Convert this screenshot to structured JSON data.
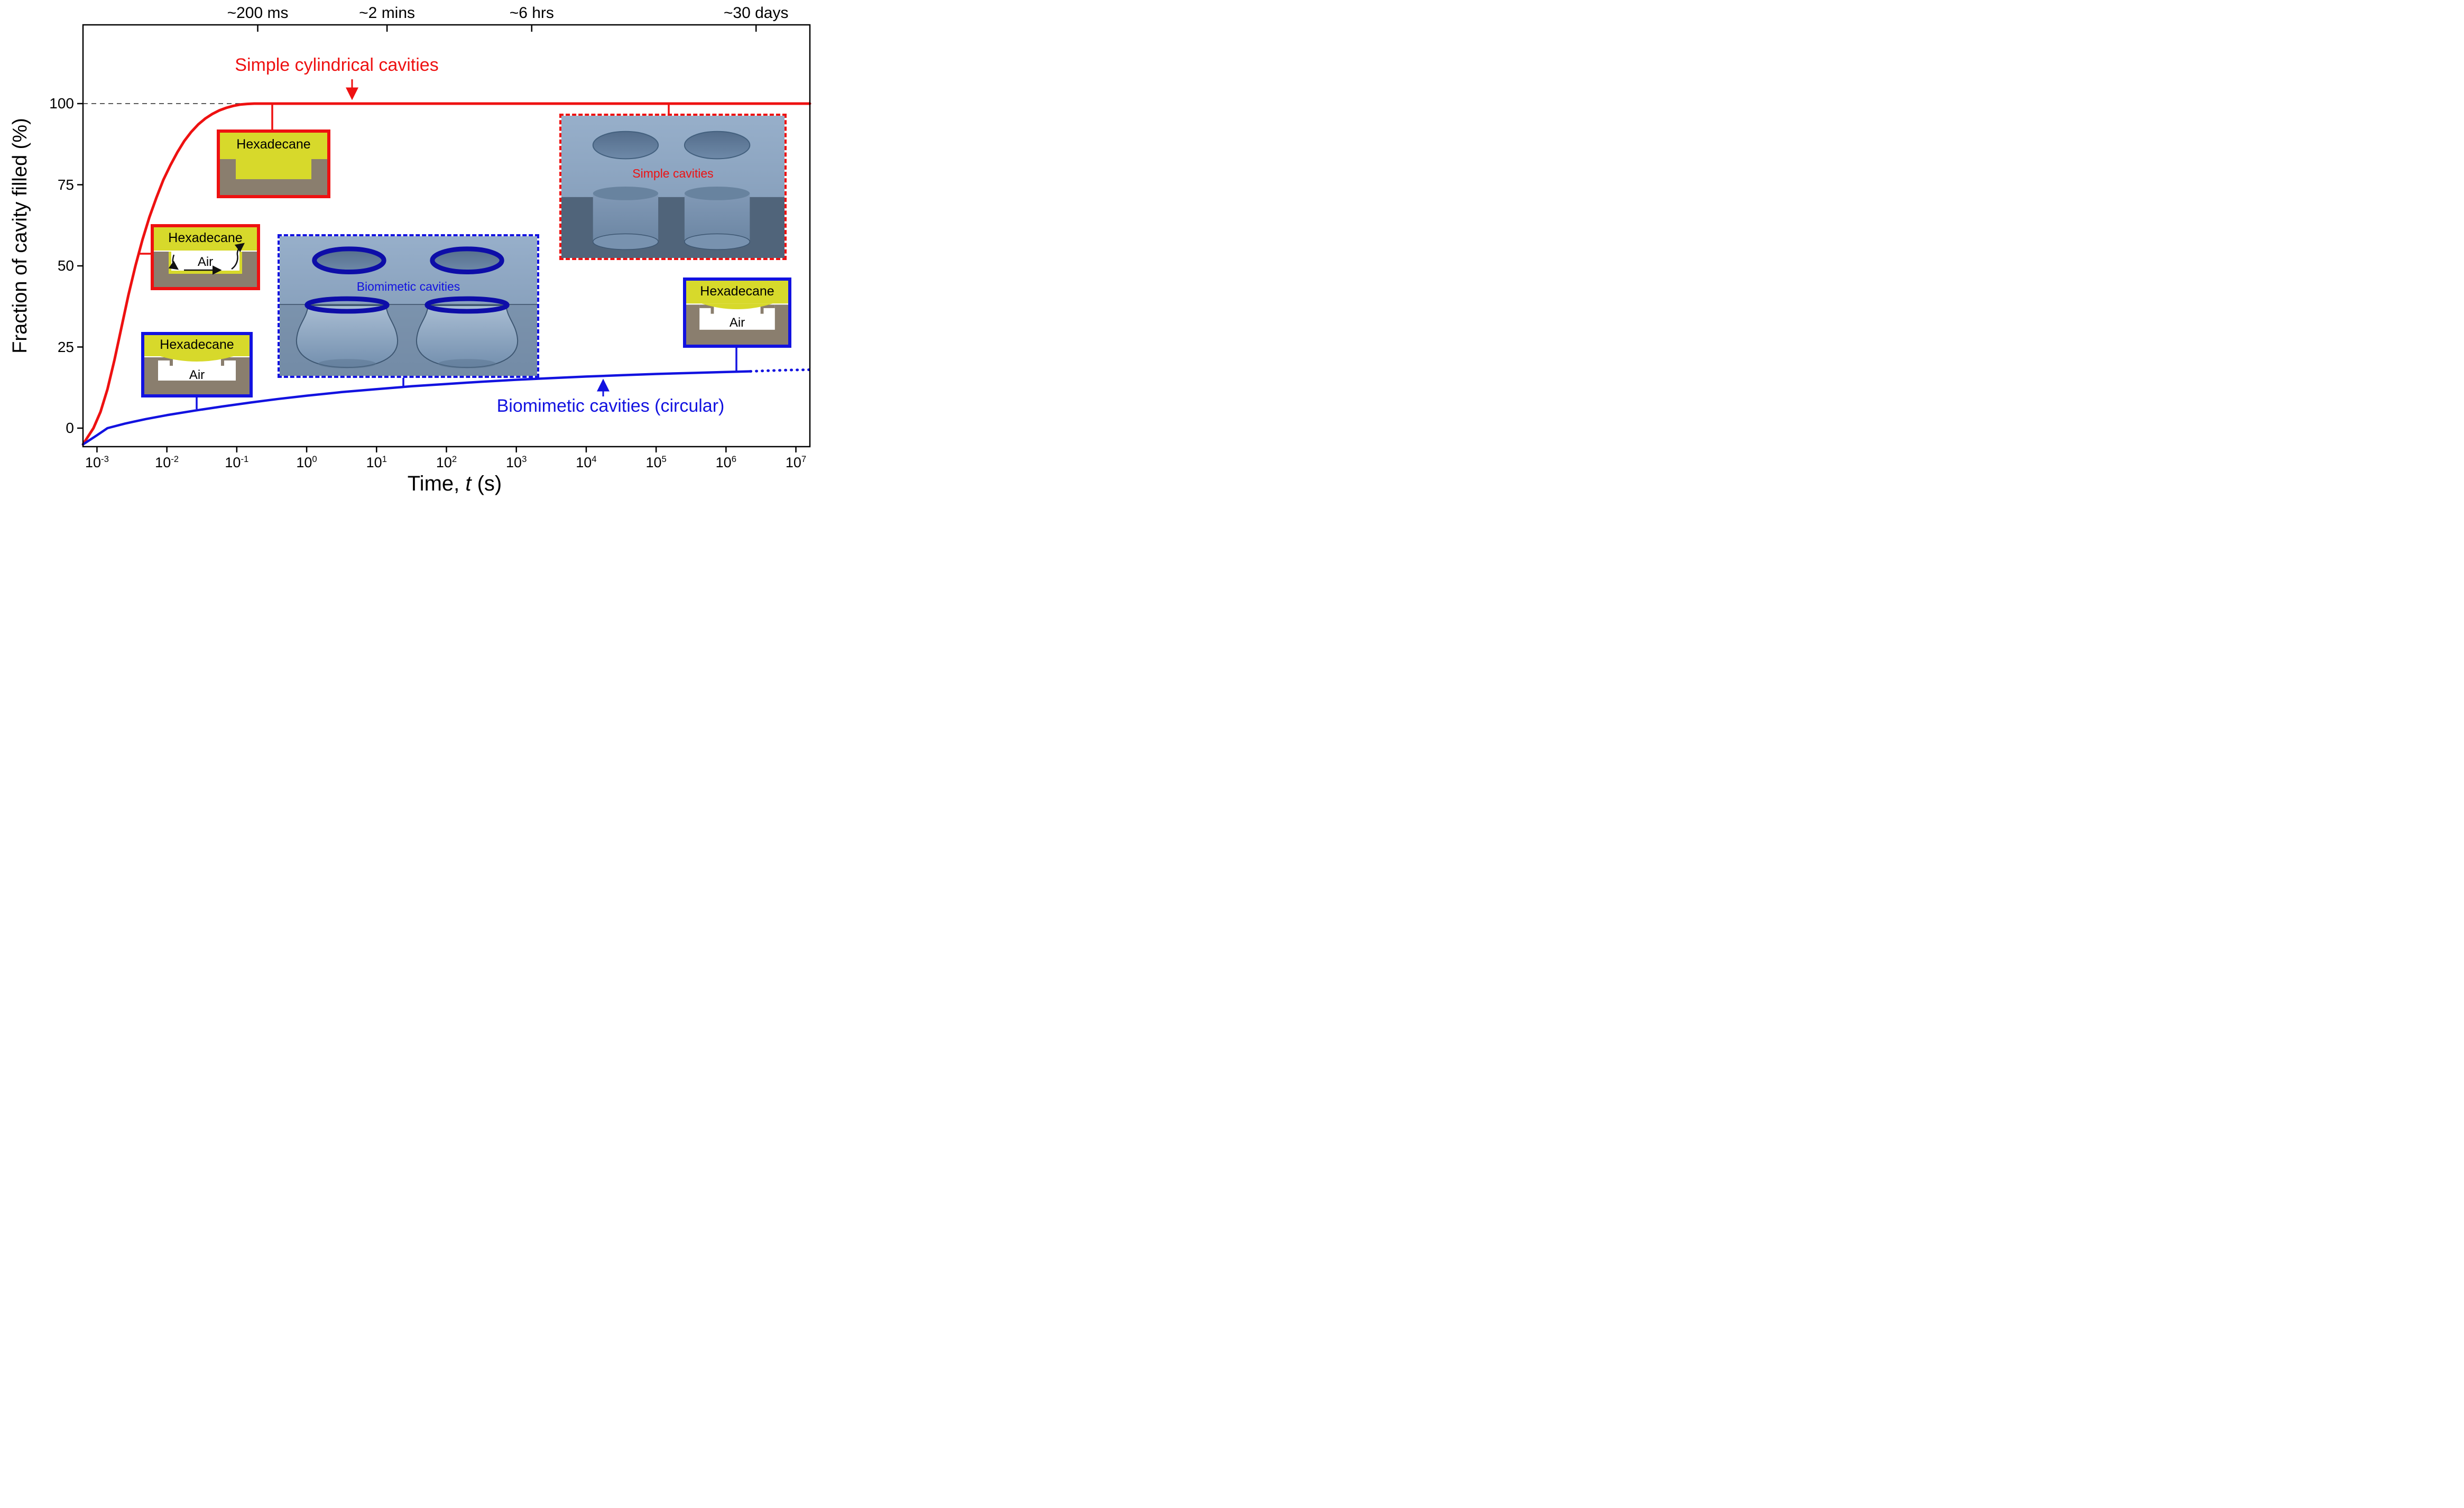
{
  "figure": {
    "ylabel": "Fraction of cavity filled (%)",
    "xlabel": {
      "prefix": "Time, ",
      "italic": "t",
      "suffix": " (s)"
    },
    "annotations": {
      "red": "Simple cylindrical cavities",
      "blue": "Biomimetic cavities (circular)"
    }
  },
  "colors": {
    "red": "#ee1111",
    "blue": "#1212e0",
    "hexadecane_yellow": "#d7d92b",
    "substrate_brown": "#8a7e6e",
    "navy_rim": "#0d0da8",
    "render_background": "#8ba4c0"
  },
  "insets": {
    "filled_simple": {
      "label": "Hexadecane"
    },
    "draining_simple": {
      "label": "Hexadecane",
      "air": "Air"
    },
    "biomimetic_small_left": {
      "label": "Hexadecane",
      "air": "Air"
    },
    "biomimetic_small_right": {
      "label": "Hexadecane",
      "air": "Air"
    },
    "render_biomimetic": {
      "caption": "Biomimetic cavities"
    },
    "render_simple": {
      "caption": "Simple cavities"
    }
  },
  "chart_data": {
    "type": "line",
    "title": "",
    "xlabel": "Time, t (s)",
    "ylabel": "Fraction of cavity filled (%)",
    "xscale": "log10",
    "xlim_log10": [
      -3.2,
      7.2
    ],
    "ylim_pct": [
      -6,
      124
    ],
    "x_tick_exponents": [
      -3,
      -2,
      -1,
      0,
      1,
      2,
      3,
      4,
      5,
      6,
      7
    ],
    "y_ticks_pct": [
      0,
      25,
      50,
      75,
      100
    ],
    "top_axis": {
      "labels": [
        "~200 ms",
        "~2 mins",
        "~6 hrs",
        "~30 days"
      ],
      "log10_positions": [
        -0.7,
        1.15,
        3.22,
        6.43
      ]
    },
    "reference_line_pct": 100,
    "series": [
      {
        "name": "Simple cylindrical cavities",
        "color_key": "red",
        "style": "solid",
        "points_log10_pct": [
          [
            -3.2,
            -5
          ],
          [
            -3.05,
            0
          ],
          [
            -2.95,
            5
          ],
          [
            -2.85,
            12
          ],
          [
            -2.75,
            21
          ],
          [
            -2.65,
            31
          ],
          [
            -2.55,
            41
          ],
          [
            -2.45,
            50
          ],
          [
            -2.35,
            58
          ],
          [
            -2.25,
            65
          ],
          [
            -2.15,
            71
          ],
          [
            -2.05,
            76.5
          ],
          [
            -1.95,
            81
          ],
          [
            -1.85,
            85
          ],
          [
            -1.75,
            88.5
          ],
          [
            -1.65,
            91.3
          ],
          [
            -1.55,
            93.6
          ],
          [
            -1.45,
            95.4
          ],
          [
            -1.35,
            96.8
          ],
          [
            -1.25,
            97.9
          ],
          [
            -1.15,
            98.7
          ],
          [
            -1.05,
            99.3
          ],
          [
            -0.95,
            99.7
          ],
          [
            -0.85,
            99.9
          ],
          [
            -0.75,
            100
          ],
          [
            7.2,
            100
          ]
        ]
      },
      {
        "name": "Biomimetic cavities (circular)",
        "color_key": "blue",
        "style": "solid",
        "points_log10_pct": [
          [
            -3.2,
            -5
          ],
          [
            -3.0,
            -2.2
          ],
          [
            -2.85,
            0
          ],
          [
            -2.6,
            1.4
          ],
          [
            -2.3,
            2.8
          ],
          [
            -2.0,
            4.0
          ],
          [
            -1.6,
            5.4
          ],
          [
            -1.2,
            6.7
          ],
          [
            -0.8,
            7.9
          ],
          [
            -0.4,
            9.0
          ],
          [
            0,
            10.0
          ],
          [
            0.5,
            11.1
          ],
          [
            1,
            12.0
          ],
          [
            1.5,
            12.9
          ],
          [
            2,
            13.6
          ],
          [
            2.5,
            14.3
          ],
          [
            3,
            14.9
          ],
          [
            3.5,
            15.4
          ],
          [
            4,
            15.9
          ],
          [
            4.5,
            16.3
          ],
          [
            5,
            16.7
          ],
          [
            5.5,
            17.0
          ],
          [
            6,
            17.3
          ],
          [
            6.35,
            17.5
          ]
        ]
      },
      {
        "name": "Biomimetic cavities (extrapolation)",
        "color_key": "blue",
        "style": "dotted",
        "points_log10_pct": [
          [
            6.35,
            17.5
          ],
          [
            6.6,
            17.7
          ],
          [
            6.9,
            17.9
          ],
          [
            7.2,
            18.0
          ]
        ]
      }
    ]
  }
}
